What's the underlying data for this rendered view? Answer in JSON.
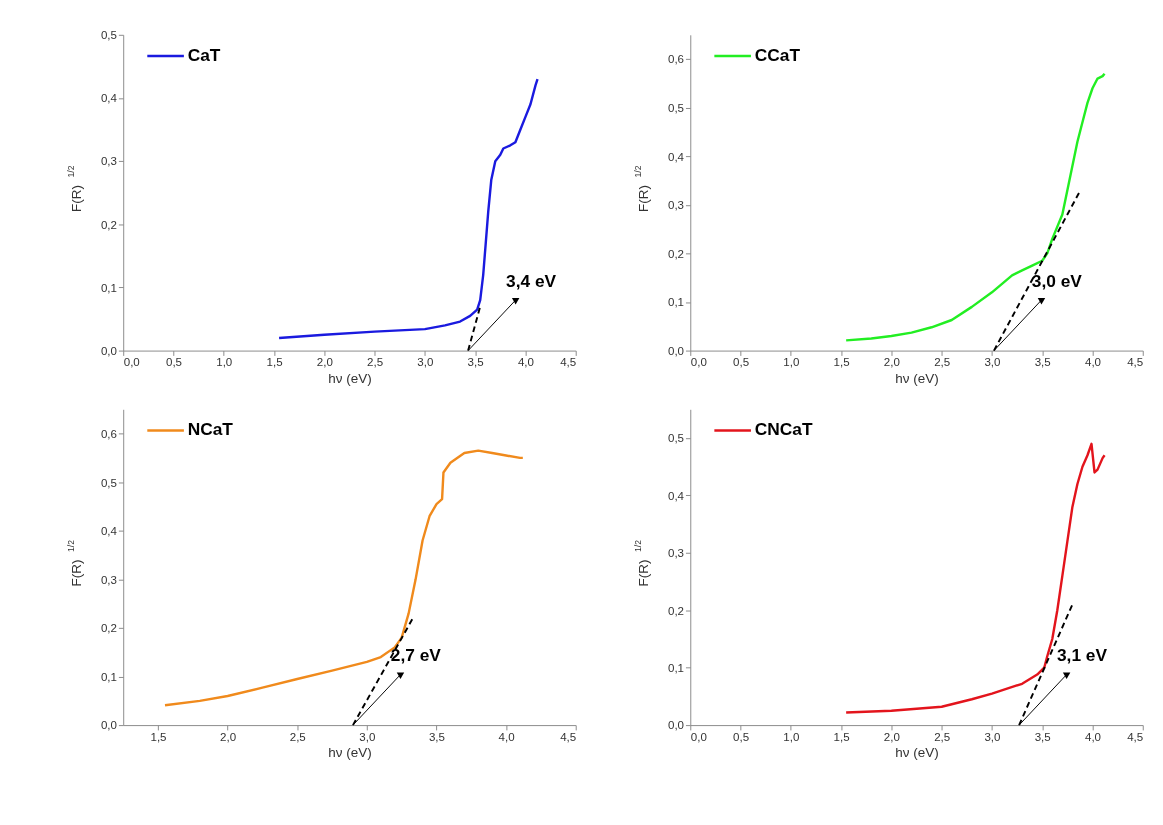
{
  "chart_data": [
    {
      "type": "line",
      "xlabel": "hν (eV)",
      "ylabel": "F(R)$^{1/2}$",
      "legend": "top left",
      "grid": false,
      "xlim": [
        0,
        4.5
      ],
      "xticks": [
        {
          "value": 0,
          "label": "0,0"
        },
        {
          "value": 0.5,
          "label": "0,5"
        },
        {
          "value": 1,
          "label": "1,0"
        },
        {
          "value": 1.5,
          "label": "1,5"
        },
        {
          "value": 2,
          "label": "2,0"
        },
        {
          "value": 2.5,
          "label": "2,5"
        },
        {
          "value": 3,
          "label": "3,0"
        },
        {
          "value": 3.5,
          "label": "3,5"
        },
        {
          "value": 4,
          "label": "4,0"
        },
        {
          "value": 4.5,
          "label": "4,5"
        }
      ],
      "ylim": [
        0,
        0.5
      ],
      "yticks": [
        {
          "value": 0,
          "label": "0,0"
        },
        {
          "value": 0.1,
          "label": "0,1"
        },
        {
          "value": 0.2,
          "label": "0,2"
        },
        {
          "value": 0.3,
          "label": "0,3"
        },
        {
          "value": 0.4,
          "label": "0,4"
        },
        {
          "value": 0.5,
          "label": "0,5"
        }
      ],
      "series": [
        {
          "name": "CaT",
          "color": "#1a1adf",
          "x": [
            1.55,
            2.0,
            2.5,
            3.0,
            3.2,
            3.35,
            3.45,
            3.52,
            3.55,
            3.58,
            3.6,
            3.63,
            3.66,
            3.7,
            3.75,
            3.78,
            3.85,
            3.9,
            3.95,
            4.0,
            4.05,
            4.1,
            4.12
          ],
          "values": [
            0.02,
            0.025,
            0.03,
            0.034,
            0.04,
            0.046,
            0.055,
            0.065,
            0.08,
            0.12,
            0.16,
            0.22,
            0.27,
            0.3,
            0.31,
            0.32,
            0.325,
            0.33,
            0.35,
            0.37,
            0.39,
            0.42,
            0.43
          ]
        },
        {
          "type": "line",
          "line_style": "dashed",
          "color": "#000000",
          "x": [
            3.43,
            3.55
          ],
          "values": [
            0,
            0.07
          ]
        }
      ],
      "annotations": [
        {
          "text": "3,4 eV",
          "x": 3.43,
          "y": 0
        }
      ]
    },
    {
      "type": "line",
      "xlabel": "hν (eV)",
      "ylabel": "F(R)$^{1/2}$",
      "legend": "top left",
      "grid": false,
      "xlim": [
        0,
        4.5
      ],
      "xticks": [
        {
          "value": 0,
          "label": "0,0"
        },
        {
          "value": 0.5,
          "label": "0,5"
        },
        {
          "value": 1,
          "label": "1,0"
        },
        {
          "value": 1.5,
          "label": "1,5"
        },
        {
          "value": 2,
          "label": "2,0"
        },
        {
          "value": 2.5,
          "label": "2,5"
        },
        {
          "value": 3,
          "label": "3,0"
        },
        {
          "value": 3.5,
          "label": "3,5"
        },
        {
          "value": 4,
          "label": "4,0"
        },
        {
          "value": 4.5,
          "label": "4,5"
        }
      ],
      "ylim": [
        0,
        0.65
      ],
      "yticks": [
        {
          "value": 0,
          "label": "0,0"
        },
        {
          "value": 0.1,
          "label": "0,1"
        },
        {
          "value": 0.2,
          "label": "0,2"
        },
        {
          "value": 0.3,
          "label": "0,3"
        },
        {
          "value": 0.4,
          "label": "0,4"
        },
        {
          "value": 0.5,
          "label": "0,5"
        },
        {
          "value": 0.6,
          "label": "0,6"
        }
      ],
      "series": [
        {
          "name": "CCaT",
          "color": "#22ee22",
          "x": [
            1.55,
            1.8,
            2.0,
            2.2,
            2.4,
            2.6,
            2.8,
            3.0,
            3.2,
            3.3,
            3.4,
            3.5,
            3.55,
            3.6,
            3.7,
            3.75,
            3.8,
            3.85,
            3.9,
            3.95,
            4.0,
            4.05,
            4.1,
            4.12
          ],
          "values": [
            0.021,
            0.025,
            0.03,
            0.037,
            0.048,
            0.063,
            0.09,
            0.12,
            0.155,
            0.165,
            0.175,
            0.185,
            0.2,
            0.23,
            0.28,
            0.33,
            0.38,
            0.43,
            0.47,
            0.51,
            0.54,
            0.56,
            0.565,
            0.57
          ]
        },
        {
          "type": "line",
          "line_style": "dashed",
          "color": "#000000",
          "x": [
            3.02,
            3.88
          ],
          "values": [
            0,
            0.33
          ]
        }
      ],
      "annotations": [
        {
          "text": "3,0 eV",
          "x": 3.02,
          "y": 0
        }
      ]
    },
    {
      "type": "line",
      "xlabel": "hν (eV)",
      "ylabel": "F(R)$^{1/2}$",
      "legend": "top left",
      "grid": false,
      "xlim": [
        1.25,
        4.5
      ],
      "xticks": [
        {
          "value": 1.5,
          "label": "1,5"
        },
        {
          "value": 2,
          "label": "2,0"
        },
        {
          "value": 2.5,
          "label": "2,5"
        },
        {
          "value": 3,
          "label": "3,0"
        },
        {
          "value": 3.5,
          "label": "3,5"
        },
        {
          "value": 4,
          "label": "4,0"
        },
        {
          "value": 4.5,
          "label": "4,5"
        }
      ],
      "ylim": [
        0,
        0.65
      ],
      "yticks": [
        {
          "value": 0,
          "label": "0,0"
        },
        {
          "value": 0.1,
          "label": "0,1"
        },
        {
          "value": 0.2,
          "label": "0,2"
        },
        {
          "value": 0.3,
          "label": "0,3"
        },
        {
          "value": 0.4,
          "label": "0,4"
        },
        {
          "value": 0.5,
          "label": "0,5"
        },
        {
          "value": 0.6,
          "label": "0,6"
        }
      ],
      "series": [
        {
          "name": "NCaT",
          "color": "#f08a1c",
          "x": [
            1.55,
            1.8,
            2.0,
            2.25,
            2.5,
            2.75,
            3.0,
            3.1,
            3.2,
            3.25,
            3.3,
            3.35,
            3.4,
            3.45,
            3.5,
            3.54,
            3.55,
            3.6,
            3.7,
            3.8,
            3.9,
            4.0,
            4.1,
            4.12
          ],
          "values": [
            0.041,
            0.05,
            0.06,
            0.077,
            0.095,
            0.112,
            0.13,
            0.14,
            0.16,
            0.18,
            0.23,
            0.3,
            0.38,
            0.43,
            0.455,
            0.465,
            0.52,
            0.54,
            0.56,
            0.565,
            0.56,
            0.555,
            0.55,
            0.55
          ]
        },
        {
          "type": "line",
          "line_style": "dashed",
          "color": "#000000",
          "x": [
            2.9,
            3.33
          ],
          "values": [
            0,
            0.22
          ]
        }
      ],
      "annotations": [
        {
          "text": "2,7 eV",
          "x": 2.9,
          "y": 0
        }
      ]
    },
    {
      "type": "line",
      "xlabel": "hν (eV)",
      "ylabel": "F(R)$^{1/2}$",
      "legend": "top left",
      "grid": false,
      "xlim": [
        0,
        4.5
      ],
      "xticks": [
        {
          "value": 0,
          "label": "0,0"
        },
        {
          "value": 0.5,
          "label": "0,5"
        },
        {
          "value": 1,
          "label": "1,0"
        },
        {
          "value": 1.5,
          "label": "1,5"
        },
        {
          "value": 2,
          "label": "2,0"
        },
        {
          "value": 2.5,
          "label": "2,5"
        },
        {
          "value": 3,
          "label": "3,0"
        },
        {
          "value": 3.5,
          "label": "3,5"
        },
        {
          "value": 4,
          "label": "4,0"
        },
        {
          "value": 4.5,
          "label": "4,5"
        }
      ],
      "ylim": [
        0,
        0.55
      ],
      "yticks": [
        {
          "value": 0,
          "label": "0,0"
        },
        {
          "value": 0.1,
          "label": "0,1"
        },
        {
          "value": 0.2,
          "label": "0,2"
        },
        {
          "value": 0.3,
          "label": "0,3"
        },
        {
          "value": 0.4,
          "label": "0,4"
        },
        {
          "value": 0.5,
          "label": "0,5"
        }
      ],
      "series": [
        {
          "name": "CNCaT",
          "color": "#e3141c",
          "x": [
            1.55,
            2.0,
            2.5,
            2.8,
            3.0,
            3.3,
            3.45,
            3.52,
            3.55,
            3.6,
            3.65,
            3.7,
            3.75,
            3.8,
            3.85,
            3.9,
            3.95,
            3.99,
            4.02,
            4.05,
            4.1,
            4.12
          ],
          "values": [
            0.022,
            0.025,
            0.032,
            0.045,
            0.055,
            0.072,
            0.088,
            0.1,
            0.12,
            0.15,
            0.2,
            0.26,
            0.32,
            0.38,
            0.42,
            0.45,
            0.47,
            0.49,
            0.44,
            0.445,
            0.465,
            0.47
          ]
        },
        {
          "type": "line",
          "line_style": "dashed",
          "color": "#000000",
          "x": [
            3.27,
            3.8
          ],
          "values": [
            0,
            0.21
          ]
        }
      ],
      "annotations": [
        {
          "text": "3,1 eV",
          "x": 3.27,
          "y": 0
        }
      ]
    }
  ]
}
